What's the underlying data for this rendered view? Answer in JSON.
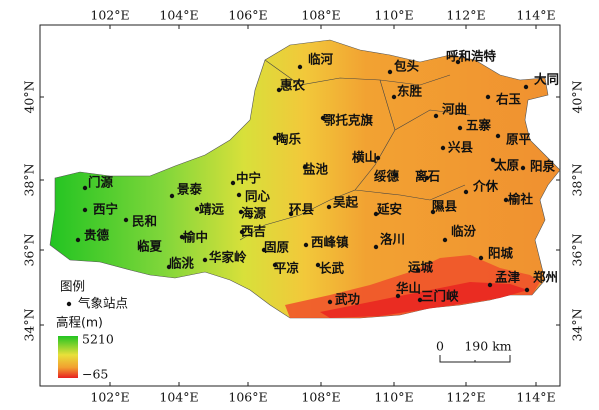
{
  "longitude_labels": [
    "102°E",
    "104°E",
    "106°E",
    "108°E",
    "110°E",
    "112°E",
    "114°E"
  ],
  "latitude_labels": [
    "40°N",
    "38°N",
    "36°N",
    "34°N"
  ],
  "stations": [
    "临河",
    "包头",
    "呼和浩特",
    "大同",
    "东胜",
    "右玉",
    "惠农",
    "鄂托克旗",
    "河曲",
    "五寨",
    "原平",
    "陶乐",
    "兴县",
    "太原",
    "阳泉",
    "中宁",
    "盐池",
    "横山",
    "绥德",
    "离石",
    "介休",
    "榆社",
    "门源",
    "景泰",
    "同心",
    "西宁",
    "民和",
    "靖远",
    "海源",
    "环县",
    "吴起",
    "延安",
    "隰县",
    "贵德",
    "临夏",
    "榆中",
    "西吉",
    "固原",
    "西峰镇",
    "洛川",
    "临汾",
    "阳城",
    "临洮",
    "华家岭",
    "平凉",
    "长武",
    "运城",
    "孟津",
    "郑州",
    "华山",
    "三门峡",
    "武功"
  ],
  "legend": {
    "title": "图例",
    "station_label": "气象站点",
    "elevation_title": "高程(m)",
    "elevation_max": "5210",
    "elevation_min": "−65"
  },
  "scale_bar": {
    "start": "0",
    "end": "190 km"
  }
}
